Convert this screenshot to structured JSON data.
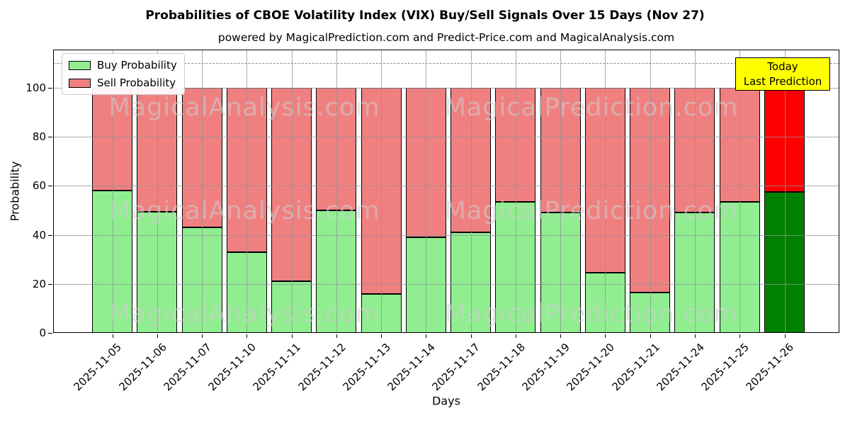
{
  "title": "Probabilities of CBOE Volatility Index (VIX) Buy/Sell Signals Over 15 Days (Nov 27)",
  "subtitle": "powered by MagicalPrediction.com and Predict-Price.com and MagicalAnalysis.com",
  "legend": {
    "items": [
      {
        "label": "Buy Probability",
        "color": "#90ee90"
      },
      {
        "label": "Sell Probability",
        "color": "#f08080"
      }
    ]
  },
  "today_box": {
    "line1": "Today",
    "line2": "Last Prediction",
    "bg_color": "#ffff00"
  },
  "watermarks": {
    "texts": [
      "MagicalAnalysis.com",
      "MagicalPrediction.com"
    ],
    "color": "#cfcfcf"
  },
  "chart_data": {
    "type": "bar",
    "stacked": true,
    "title": "Probabilities of CBOE Volatility Index (VIX) Buy/Sell Signals Over 15 Days (Nov 27)",
    "xlabel": "Days",
    "ylabel": "Probability",
    "categories": [
      "2025-11-05",
      "2025-11-06",
      "2025-11-07",
      "2025-11-10",
      "2025-11-11",
      "2025-11-12",
      "2025-11-13",
      "2025-11-14",
      "2025-11-17",
      "2025-11-18",
      "2025-11-19",
      "2025-11-20",
      "2025-11-21",
      "2025-11-24",
      "2025-11-25",
      "2025-11-26"
    ],
    "series": [
      {
        "name": "Buy Probability",
        "color": "#90ee90",
        "last_bar_color": "#008000",
        "values": [
          58,
          49.5,
          43,
          33,
          21,
          50,
          16,
          39,
          41,
          53.5,
          49,
          24.5,
          16.5,
          49,
          53.5,
          57.5
        ]
      },
      {
        "name": "Sell Probability",
        "color": "#f08080",
        "last_bar_color": "#ff0000",
        "values": [
          42,
          50.5,
          57,
          67,
          79,
          50,
          84,
          61,
          59,
          46.5,
          51,
          75.5,
          83.5,
          51,
          46.5,
          42.5
        ]
      }
    ],
    "yticks": [
      0,
      20,
      40,
      60,
      80,
      100
    ],
    "ylim": [
      0,
      115.6
    ],
    "dashed_hline_y": 110,
    "grid": true,
    "legend_position": "upper left"
  }
}
